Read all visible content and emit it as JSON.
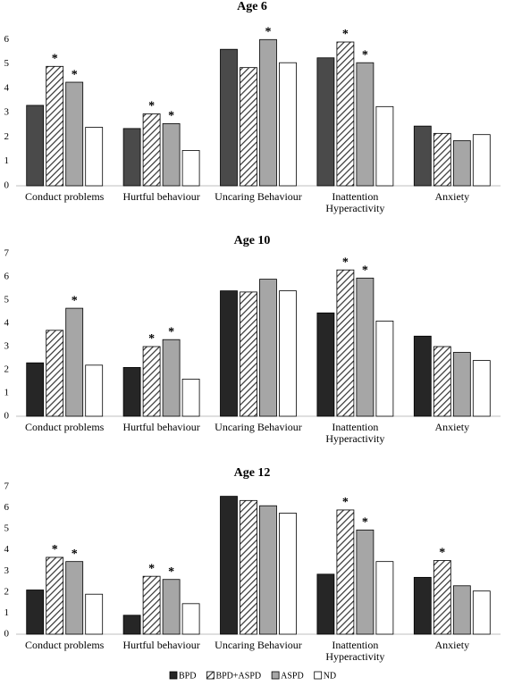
{
  "chart_data": [
    {
      "type": "bar",
      "title": "Age 6",
      "categories": [
        "Conduct problems",
        "Hurtful behaviour",
        "Uncaring Behaviour",
        "Inattention Hyperactivity",
        "Anxiety"
      ],
      "ylim": [
        0,
        7
      ],
      "yticks": [
        0,
        1,
        2,
        3,
        4,
        5,
        6
      ],
      "series": [
        {
          "color": "#4a4a4a",
          "values": [
            3.3,
            2.35,
            5.6,
            5.25,
            2.45
          ],
          "significance": [
            null,
            null,
            null,
            null,
            null
          ]
        },
        {
          "color": "#ffffff",
          "pattern": "hatch",
          "values": [
            4.9,
            2.95,
            4.85,
            5.9,
            2.15
          ],
          "significance": [
            "*",
            "*",
            null,
            "*",
            null
          ]
        },
        {
          "color": "#a6a6a6",
          "values": [
            4.25,
            2.55,
            6.0,
            5.05,
            1.85
          ],
          "significance": [
            "*",
            "*",
            "*",
            "*",
            null
          ]
        },
        {
          "color": "#ffffff",
          "values": [
            2.4,
            1.45,
            5.05,
            3.25,
            2.1
          ],
          "significance": [
            null,
            null,
            null,
            null,
            null
          ]
        }
      ]
    },
    {
      "type": "bar",
      "title": "Age 10",
      "categories": [
        "Conduct problems",
        "Hurtful behaviour",
        "Uncaring Behaviour",
        "Inattention Hyperactivity",
        "Anxiety"
      ],
      "ylim": [
        0,
        7
      ],
      "yticks": [
        0,
        1,
        2,
        3,
        4,
        5,
        6,
        7
      ],
      "series": [
        {
          "color": "#262626",
          "values": [
            2.3,
            2.1,
            5.4,
            4.45,
            3.45
          ],
          "significance": [
            null,
            null,
            null,
            null,
            null
          ]
        },
        {
          "color": "#ffffff",
          "pattern": "hatch",
          "values": [
            3.7,
            3.0,
            5.35,
            6.3,
            3.0
          ],
          "significance": [
            null,
            "*",
            null,
            "*",
            null
          ]
        },
        {
          "color": "#a6a6a6",
          "values": [
            4.65,
            3.3,
            5.9,
            5.95,
            2.75
          ],
          "significance": [
            "*",
            "*",
            null,
            "*",
            null
          ]
        },
        {
          "color": "#ffffff",
          "values": [
            2.2,
            1.6,
            5.4,
            4.1,
            2.4
          ],
          "significance": [
            null,
            null,
            null,
            null,
            null
          ]
        }
      ]
    },
    {
      "type": "bar",
      "title": "Age 12",
      "categories": [
        "Conduct problems",
        "Hurtful behaviour",
        "Uncaring Behaviour",
        "Inattention Hyperactivity",
        "Anxiety"
      ],
      "ylim": [
        0,
        7
      ],
      "yticks": [
        0,
        1,
        2,
        3,
        4,
        5,
        6,
        7
      ],
      "series": [
        {
          "color": "#262626",
          "values": [
            2.1,
            0.9,
            6.55,
            2.85,
            2.7
          ],
          "significance": [
            null,
            null,
            null,
            null,
            null
          ]
        },
        {
          "color": "#ffffff",
          "pattern": "hatch",
          "values": [
            3.65,
            2.75,
            6.35,
            5.9,
            3.5
          ],
          "significance": [
            "*",
            "*",
            null,
            "*",
            "*"
          ]
        },
        {
          "color": "#a6a6a6",
          "values": [
            3.45,
            2.6,
            6.1,
            4.95,
            2.3
          ],
          "significance": [
            "*",
            "*",
            null,
            "*",
            null
          ]
        },
        {
          "color": "#ffffff",
          "values": [
            1.9,
            1.45,
            5.75,
            3.45,
            2.05
          ],
          "significance": [
            null,
            null,
            null,
            null,
            null
          ]
        }
      ]
    }
  ],
  "legend": [
    {
      "name": "BPD",
      "color": "#262626"
    },
    {
      "name": "BPD+ASPD",
      "color": "#ffffff",
      "pattern": "hatch"
    },
    {
      "name": "ASPD",
      "color": "#a6a6a6"
    },
    {
      "name": "ND",
      "color": "#ffffff"
    }
  ]
}
